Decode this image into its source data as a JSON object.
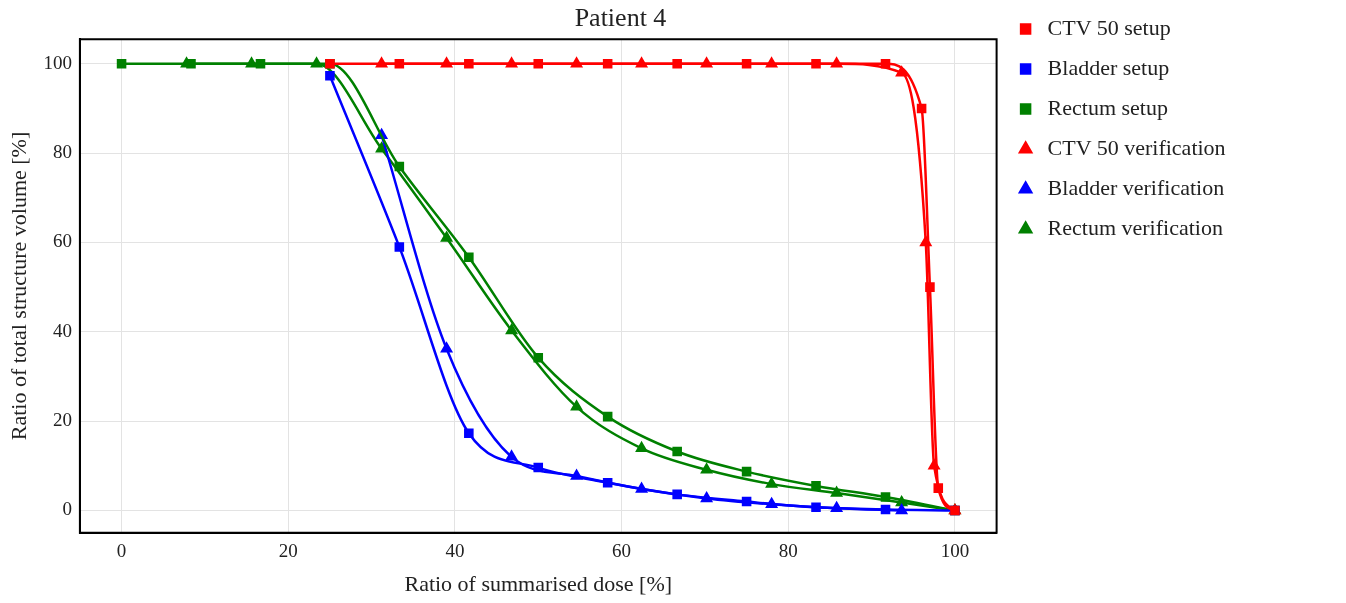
{
  "chart_data": {
    "type": "line",
    "title": "Patient 4",
    "xlabel": "Ratio of summarised dose [%]",
    "ylabel": "Ratio of total structure volume [%]",
    "xlim": [
      -5,
      105
    ],
    "ylim": [
      -5,
      105.5
    ],
    "xticks": [
      0,
      20,
      40,
      60,
      80,
      100
    ],
    "yticks": [
      0,
      20,
      40,
      60,
      80,
      100
    ],
    "grid": true,
    "legend": "top right",
    "line_style": "solid",
    "series": [
      {
        "name": "CTV 50 setup",
        "color": "#ff0000",
        "marker": "square",
        "x": [
          25,
          33.33,
          41.67,
          50,
          58.33,
          66.67,
          75,
          83.33,
          91.67,
          96,
          97,
          98,
          100
        ],
        "values": [
          100,
          100,
          100,
          100,
          100,
          100,
          100,
          100,
          100,
          90,
          50,
          5,
          0
        ]
      },
      {
        "name": "Bladder setup",
        "color": "#0000ff",
        "marker": "square",
        "x": [
          25,
          33.33,
          41.67,
          50,
          58.33,
          66.67,
          75,
          83.33,
          91.67,
          100
        ],
        "values": [
          97.3,
          59,
          17.3,
          9.6,
          6.2,
          3.6,
          2,
          0.7,
          0.2,
          0
        ]
      },
      {
        "name": "Rectum setup",
        "color": "#008000",
        "marker": "square",
        "x": [
          0,
          8.33,
          16.67,
          25,
          33.33,
          41.67,
          50,
          58.33,
          66.67,
          75,
          83.33,
          91.67,
          100
        ],
        "values": [
          100,
          100,
          100,
          100,
          77,
          56.7,
          34.2,
          21,
          13.2,
          8.7,
          5.5,
          3,
          0
        ]
      },
      {
        "name": "CTV 50 verification",
        "color": "#ff0000",
        "marker": "triangle",
        "x": [
          31.2,
          39,
          46.8,
          54.6,
          62.4,
          70.2,
          78,
          85.8,
          93.6,
          96.5,
          97.5,
          100
        ],
        "values": [
          100,
          100,
          100,
          100,
          100,
          100,
          100,
          100,
          98,
          60,
          10,
          0
        ]
      },
      {
        "name": "Bladder verification",
        "color": "#0000ff",
        "marker": "triangle",
        "x": [
          31.2,
          39,
          46.8,
          54.6,
          62.4,
          70.2,
          78,
          85.8,
          93.6
        ],
        "values": [
          84,
          36.2,
          12,
          7.7,
          4.8,
          2.7,
          1.4,
          0.5,
          0
        ]
      },
      {
        "name": "Rectum verification",
        "color": "#008000",
        "marker": "triangle",
        "x": [
          7.8,
          15.6,
          23.4,
          31.2,
          39,
          46.8,
          54.6,
          62.4,
          70.2,
          78,
          85.8,
          93.6,
          100
        ],
        "values": [
          100,
          100,
          100,
          81,
          61,
          40.3,
          23.2,
          13.9,
          9.1,
          5.9,
          3.9,
          1.8,
          0
        ]
      }
    ]
  }
}
